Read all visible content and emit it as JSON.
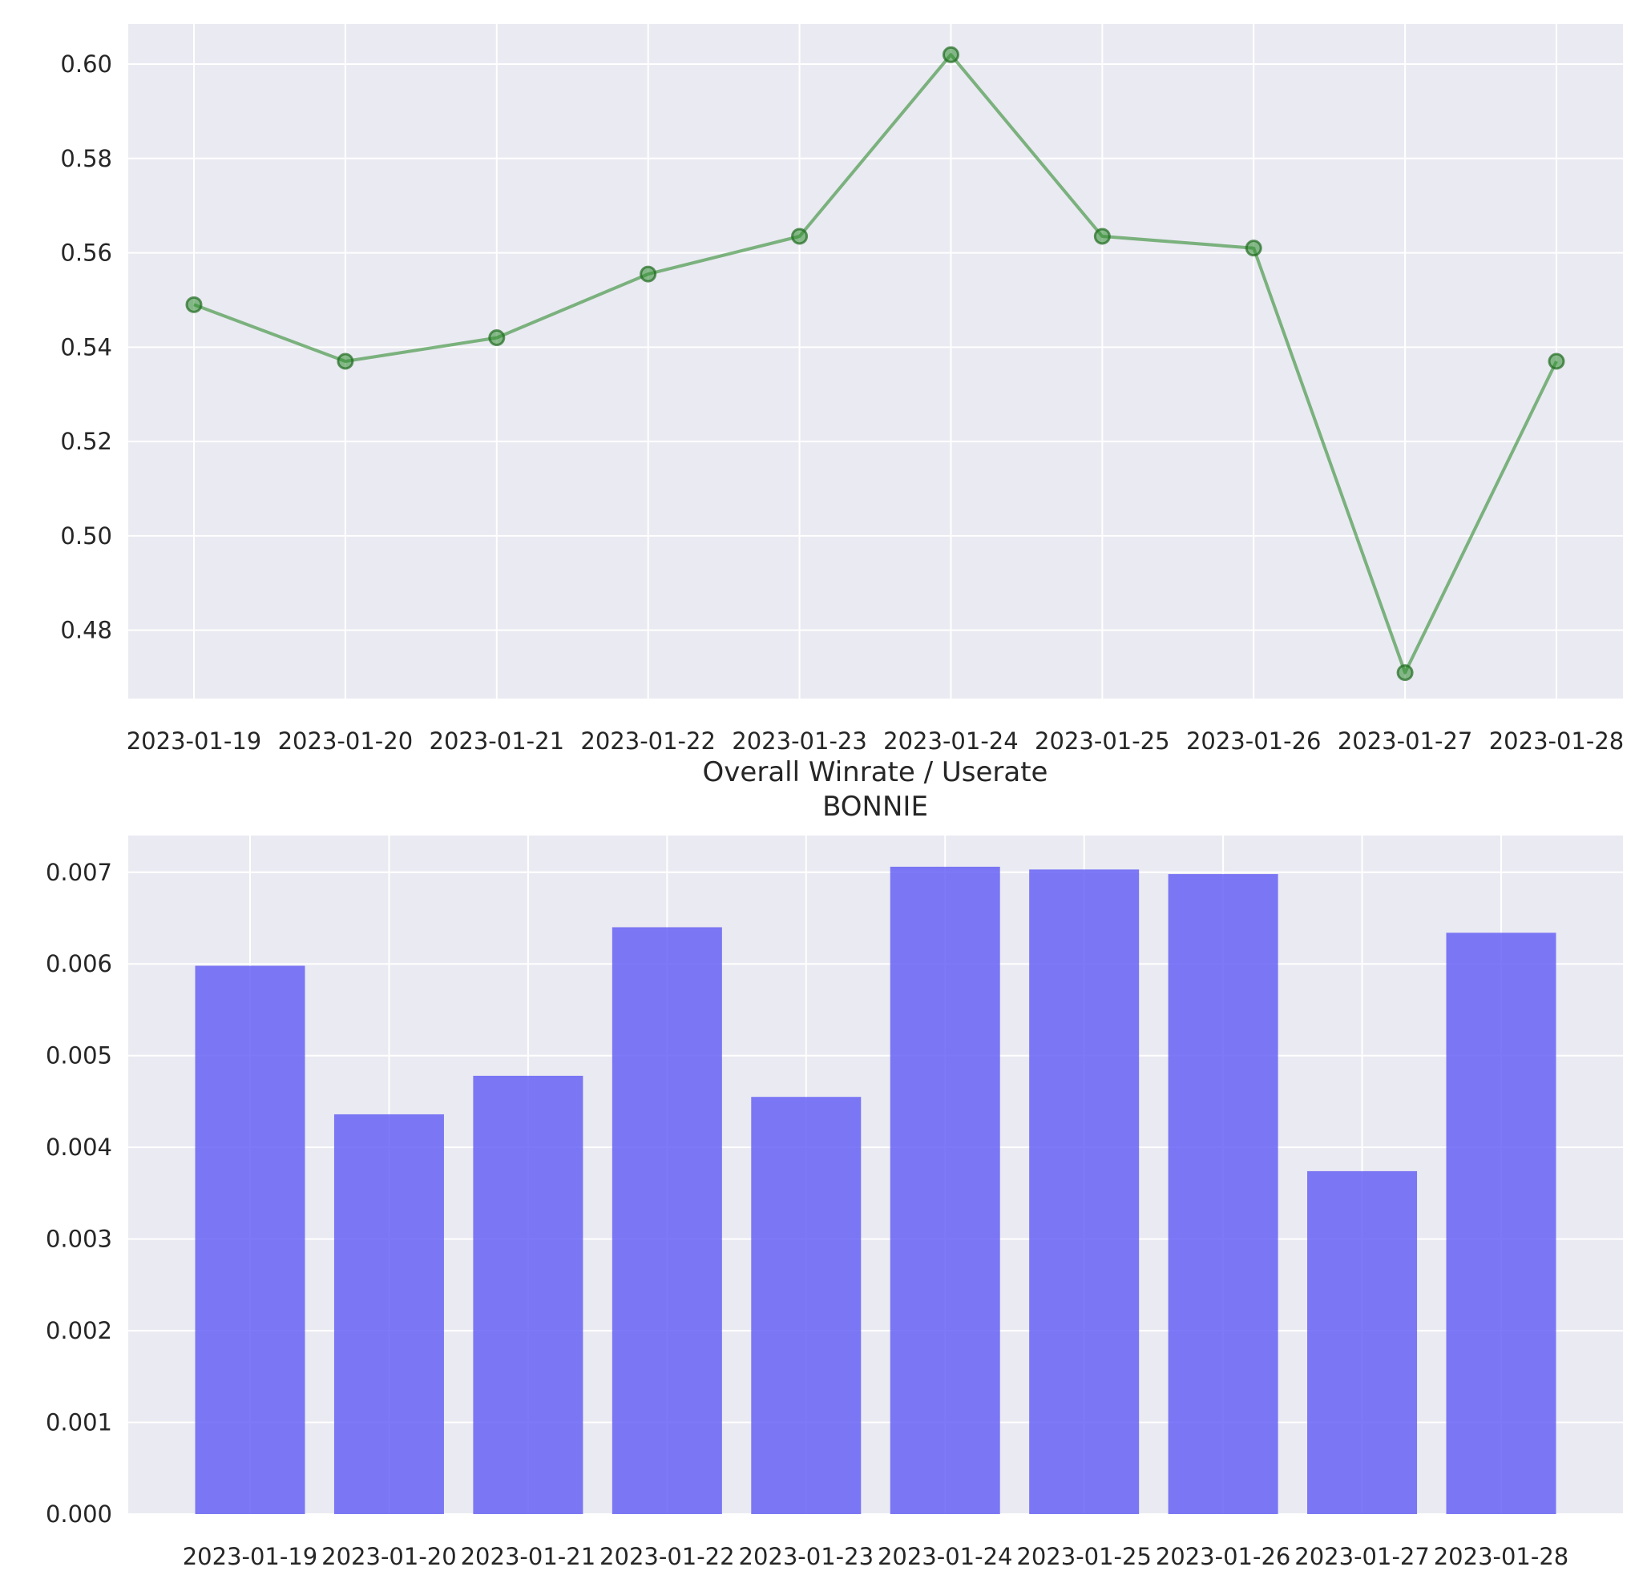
{
  "colors": {
    "axes_background": "#EAEAF2",
    "grid": "#FFFFFF",
    "text": "#262626",
    "line_color": "#2E8B2E",
    "bar_color": "#5A55F5"
  },
  "chart_data": [
    {
      "type": "line",
      "title": "",
      "xlabel": "",
      "ylabel": "",
      "x": [
        "2023-01-19",
        "2023-01-20",
        "2023-01-21",
        "2023-01-22",
        "2023-01-23",
        "2023-01-24",
        "2023-01-25",
        "2023-01-26",
        "2023-01-27",
        "2023-01-28"
      ],
      "values": [
        0.549,
        0.537,
        0.542,
        0.5555,
        0.5635,
        0.602,
        0.5635,
        0.561,
        0.471,
        0.537
      ],
      "ylim": [
        0.4655,
        0.6085
      ],
      "yticks": [
        0.48,
        0.5,
        0.52,
        0.54,
        0.56,
        0.58,
        0.6
      ],
      "ytick_labels": [
        "0.48",
        "0.50",
        "0.52",
        "0.54",
        "0.56",
        "0.58",
        "0.60"
      ],
      "grid": true,
      "marker": "circle",
      "color": "green",
      "alpha": 0.5
    },
    {
      "type": "bar",
      "title": "Overall Winrate / Userate\nBONNIE",
      "title_lines": [
        "Overall Winrate / Userate",
        "BONNIE"
      ],
      "xlabel": "",
      "ylabel": "",
      "categories": [
        "2023-01-19",
        "2023-01-20",
        "2023-01-21",
        "2023-01-22",
        "2023-01-23",
        "2023-01-24",
        "2023-01-25",
        "2023-01-26",
        "2023-01-27",
        "2023-01-28"
      ],
      "values": [
        0.00598,
        0.00436,
        0.00478,
        0.0064,
        0.00455,
        0.00706,
        0.00703,
        0.00698,
        0.00374,
        0.00634
      ],
      "ylim": [
        0,
        0.0074
      ],
      "yticks": [
        0,
        0.001,
        0.002,
        0.003,
        0.004,
        0.005,
        0.006,
        0.007
      ],
      "ytick_labels": [
        "0.000",
        "0.001",
        "0.002",
        "0.003",
        "0.004",
        "0.005",
        "0.006",
        "0.007"
      ],
      "grid": true,
      "color": "blue",
      "alpha": 0.5
    }
  ]
}
